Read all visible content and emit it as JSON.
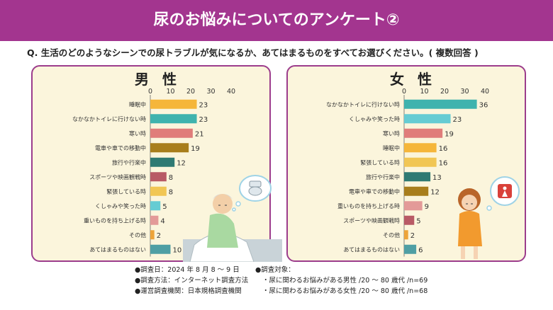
{
  "header": {
    "title": "尿のお悩みについてのアンケート②"
  },
  "question": "Q. 生活のどのようなシーンでの尿トラブルが気になるか、あてはまるものをすべてお選びください。( 複数回答 )",
  "colors": {
    "header": "#a3358f",
    "panel_bg": "#fbf5dc",
    "panel_border": "#9c3c8c"
  },
  "chart_data": [
    {
      "type": "bar",
      "orientation": "horizontal",
      "title": "男 性",
      "xlim": [
        0,
        40
      ],
      "ticks": [
        0,
        10,
        20,
        30,
        40
      ],
      "categories": [
        "睡眠中",
        "なかなかトイレに行けない時",
        "寒い時",
        "電車や車での移動中",
        "旅行や行楽中",
        "スポーツや映画観戦時",
        "緊張している時",
        "くしゃみや笑った時",
        "重いものを持ち上げる時",
        "その他",
        "あてはまるものはない"
      ],
      "values": [
        23,
        23,
        21,
        19,
        12,
        8,
        8,
        5,
        4,
        2,
        10
      ],
      "colors": [
        "#f5b63a",
        "#3fb3ae",
        "#e07d7a",
        "#a87e1c",
        "#2f7a73",
        "#b85a65",
        "#f1c654",
        "#66ccd3",
        "#e39a98",
        "#eda43a",
        "#4f9fa4"
      ]
    },
    {
      "type": "bar",
      "orientation": "horizontal",
      "title": "女 性",
      "xlim": [
        0,
        40
      ],
      "ticks": [
        0,
        10,
        20,
        30,
        40
      ],
      "categories": [
        "なかなかトイレに行けない時",
        "くしゃみや笑った時",
        "寒い時",
        "睡眠中",
        "緊張している時",
        "旅行や行楽中",
        "電車や車での移動中",
        "重いものを持ち上げる時",
        "スポーツや映画観戦時",
        "その他",
        "あてはまるものはない"
      ],
      "values": [
        36,
        23,
        19,
        16,
        16,
        13,
        12,
        9,
        5,
        2,
        6
      ],
      "colors": [
        "#3fb3ae",
        "#66ccd3",
        "#e07d7a",
        "#f5b63a",
        "#f1c654",
        "#2f7a73",
        "#a87e1c",
        "#e39a98",
        "#b85a65",
        "#eda43a",
        "#4f9fa4"
      ]
    }
  ],
  "footer": {
    "date": "●調査日：2024 年 8 月 8 〜 9 日",
    "method": "●調査方法：インターネット調査方法",
    "org": "●運営調査機関：日本規格調査機関",
    "target_label": "●調査対象：",
    "target_male": "・尿に関わるお悩みがある男性 /20 〜 80 歳代 /n=69",
    "target_female": "・尿に関わるお悩みがある女性 /20 〜 80 歳代 /n=68"
  }
}
